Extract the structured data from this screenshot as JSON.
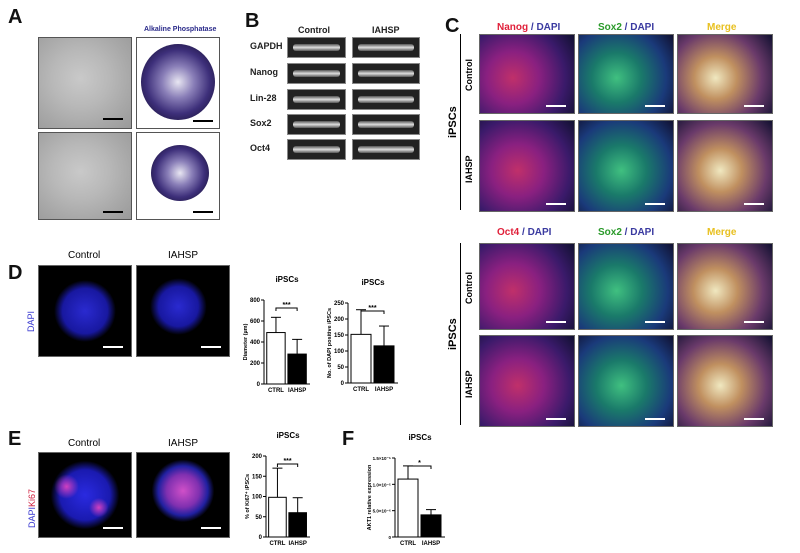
{
  "panels": {
    "A": {
      "label": "A",
      "ap_title": "Alkaline Phosphatase"
    },
    "B": {
      "label": "B",
      "columns": [
        "Control",
        "IAHSP"
      ],
      "genes": [
        "GAPDH",
        "Nanog",
        "Lin-28",
        "Sox2",
        "Oct4"
      ]
    },
    "C": {
      "label": "C",
      "group_label": "iPSCs",
      "rows": [
        "Control",
        "IAHSP"
      ],
      "set1": {
        "c1a": "Nanog",
        "c1b": " / DAPI",
        "c2a": "Sox2",
        "c2b": " / DAPI",
        "c3": "Merge"
      },
      "set2": {
        "c1a": "Oct4",
        "c1b": " / DAPI",
        "c2a": "Sox2",
        "c2b": " / DAPI",
        "c3": "Merge"
      },
      "colors": {
        "red": "#e0203a",
        "green": "#2a9a2a",
        "blue": "#3a3aa0",
        "yellow": "#e8c020"
      }
    },
    "D": {
      "label": "D",
      "titles": [
        "Control",
        "IAHSP"
      ],
      "stain": "DAPI"
    },
    "E": {
      "label": "E",
      "titles": [
        "Control",
        "IAHSP"
      ],
      "stain_a": "DAPI",
      "stain_b": "Ki67"
    },
    "F": {
      "label": "F"
    }
  },
  "chart_data": [
    {
      "type": "bar",
      "title": "iPSCs",
      "ylabel": "Diameter (µm)",
      "categories": [
        "CTRL",
        "IAHSP"
      ],
      "values": [
        490,
        285
      ],
      "errors": [
        145,
        140
      ],
      "ylim": [
        0,
        800
      ],
      "yticks": [
        "0",
        "200",
        "400",
        "600",
        "800"
      ],
      "significance": "***"
    },
    {
      "type": "bar",
      "title": "iPSCs",
      "ylabel": "No. of DAPI positive iPSCs",
      "categories": [
        "CTRL",
        "IAHSP"
      ],
      "values": [
        152,
        116
      ],
      "errors": [
        77,
        62
      ],
      "ylim": [
        0,
        250
      ],
      "yticks": [
        "0",
        "50",
        "100",
        "150",
        "200",
        "250"
      ],
      "significance": "***"
    },
    {
      "type": "bar",
      "title": "iPSCs",
      "ylabel": "% of Ki67⁺ iPSCs",
      "categories": [
        "CTRL",
        "IAHSP"
      ],
      "values": [
        98,
        60
      ],
      "errors": [
        72,
        37
      ],
      "ylim": [
        0,
        200
      ],
      "yticks": [
        "0",
        "50",
        "100",
        "150",
        "200"
      ],
      "significance": "***"
    },
    {
      "type": "bar",
      "title": "iPSCs",
      "ylabel": "AKT1 relative expression",
      "categories": [
        "CTRL",
        "IAHSP"
      ],
      "values": [
        1.1e-05,
        4.2e-06
      ],
      "errors": [
        2.5e-06,
        1e-06
      ],
      "ylim": [
        0,
        1.5e-05
      ],
      "yticks": [
        "0",
        "5.0×10⁻⁶",
        "1.0×10⁻⁵",
        "1.5×10⁻⁵"
      ],
      "significance": "*"
    }
  ]
}
